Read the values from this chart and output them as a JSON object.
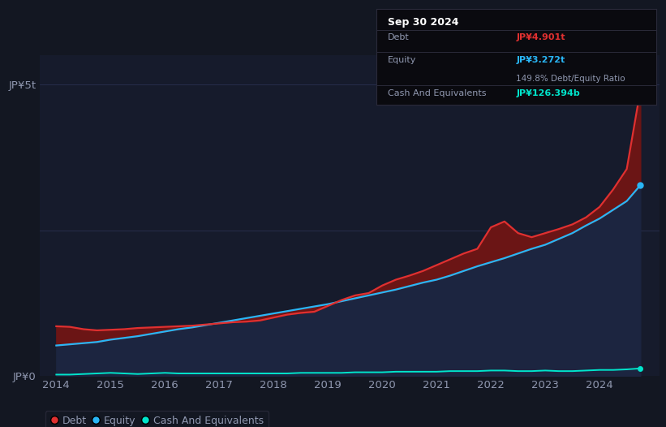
{
  "background_color": "#131722",
  "plot_bg_color": "#161b2c",
  "title_date": "Sep 30 2024",
  "debt_label": "Debt",
  "debt_value": "JP¥4.901t",
  "equity_label": "Equity",
  "equity_value": "JP¥3.272t",
  "ratio_text": "149.8% Debt/Equity Ratio",
  "cash_label": "Cash And Equivalents",
  "cash_value": "JP¥126.394b",
  "ylabel_top": "JP¥5t",
  "ylabel_bottom": "JP¥0",
  "debt_color": "#e03030",
  "equity_color": "#29b6f6",
  "cash_color": "#00e5cc",
  "debt_fill_color": "#6b1515",
  "equity_fill_color": "#1c2540",
  "years": [
    2014.0,
    2014.25,
    2014.5,
    2014.75,
    2015.0,
    2015.25,
    2015.5,
    2015.75,
    2016.0,
    2016.25,
    2016.5,
    2016.75,
    2017.0,
    2017.25,
    2017.5,
    2017.75,
    2018.0,
    2018.25,
    2018.5,
    2018.75,
    2019.0,
    2019.25,
    2019.5,
    2019.75,
    2020.0,
    2020.25,
    2020.5,
    2020.75,
    2021.0,
    2021.25,
    2021.5,
    2021.75,
    2022.0,
    2022.25,
    2022.5,
    2022.75,
    2023.0,
    2023.25,
    2023.5,
    2023.75,
    2024.0,
    2024.25,
    2024.5,
    2024.75
  ],
  "debt_values": [
    0.85,
    0.84,
    0.8,
    0.78,
    0.79,
    0.8,
    0.82,
    0.83,
    0.84,
    0.85,
    0.86,
    0.88,
    0.9,
    0.92,
    0.93,
    0.95,
    1.0,
    1.05,
    1.08,
    1.1,
    1.2,
    1.3,
    1.38,
    1.42,
    1.55,
    1.65,
    1.72,
    1.8,
    1.9,
    2.0,
    2.1,
    2.18,
    2.55,
    2.65,
    2.45,
    2.38,
    2.45,
    2.52,
    2.6,
    2.72,
    2.9,
    3.2,
    3.55,
    4.901
  ],
  "equity_values": [
    0.52,
    0.54,
    0.56,
    0.58,
    0.62,
    0.65,
    0.68,
    0.72,
    0.76,
    0.8,
    0.83,
    0.87,
    0.91,
    0.95,
    0.99,
    1.03,
    1.07,
    1.11,
    1.15,
    1.19,
    1.23,
    1.28,
    1.33,
    1.38,
    1.43,
    1.48,
    1.54,
    1.6,
    1.65,
    1.72,
    1.8,
    1.88,
    1.95,
    2.02,
    2.1,
    2.18,
    2.25,
    2.35,
    2.45,
    2.58,
    2.7,
    2.85,
    3.0,
    3.272
  ],
  "cash_values": [
    0.02,
    0.02,
    0.03,
    0.04,
    0.05,
    0.04,
    0.03,
    0.04,
    0.05,
    0.04,
    0.04,
    0.04,
    0.04,
    0.04,
    0.04,
    0.04,
    0.04,
    0.04,
    0.05,
    0.05,
    0.05,
    0.05,
    0.06,
    0.06,
    0.06,
    0.07,
    0.07,
    0.07,
    0.07,
    0.08,
    0.08,
    0.08,
    0.09,
    0.09,
    0.08,
    0.08,
    0.09,
    0.08,
    0.08,
    0.09,
    0.1,
    0.1,
    0.11,
    0.126
  ],
  "ylim": [
    0,
    5.5
  ],
  "xlim": [
    2013.7,
    2025.1
  ],
  "xticks": [
    2014,
    2015,
    2016,
    2017,
    2018,
    2019,
    2020,
    2021,
    2022,
    2023,
    2024
  ],
  "yticks": [
    0,
    2.5,
    5.0
  ],
  "ytick_labels": [
    "JP¥0",
    "",
    "JP¥5t"
  ],
  "grid_color": "#2a3050",
  "text_color": "#9098b0",
  "white_color": "#ffffff",
  "infobox_bg": "#0a0a0f",
  "infobox_border": "#2a2a3a",
  "legend_entries": [
    "Debt",
    "Equity",
    "Cash And Equivalents"
  ]
}
